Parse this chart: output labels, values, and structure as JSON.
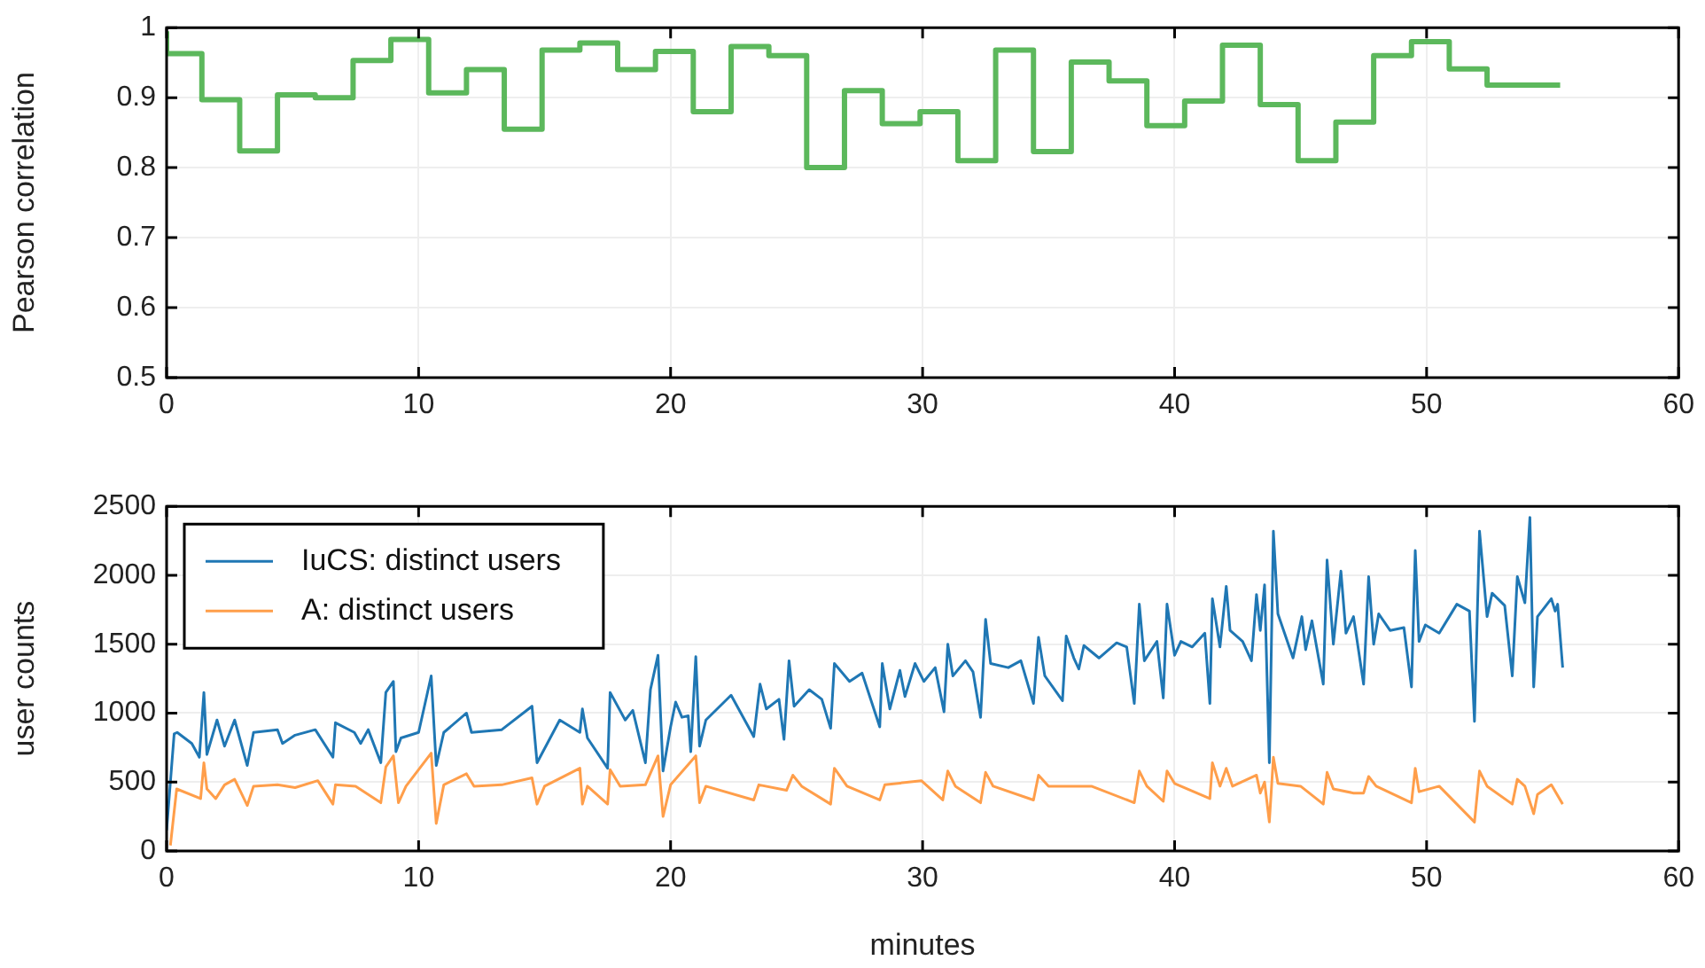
{
  "chart_data": [
    {
      "type": "step",
      "ylabel": "Pearson correlation",
      "xlim": [
        0,
        60
      ],
      "xticks": [
        0,
        10,
        20,
        30,
        40,
        50,
        60
      ],
      "ylim": [
        0.5,
        1
      ],
      "yticks": [
        0.5,
        0.6,
        0.7,
        0.8,
        0.9,
        1
      ],
      "grid": true,
      "legend": false,
      "series": [
        {
          "color": "#5cb85c",
          "x": [
            0,
            1.4,
            2.9,
            4.4,
            5.9,
            7.4,
            8.9,
            10.4,
            11.9,
            13.4,
            14.9,
            16.4,
            17.9,
            19.4,
            20.9,
            22.4,
            23.9,
            25.4,
            26.9,
            28.4,
            29.9,
            31.4,
            32.9,
            34.4,
            35.9,
            37.4,
            38.9,
            40.4,
            41.9,
            43.4,
            44.9,
            46.4,
            47.9,
            49.4,
            50.9,
            52.4,
            53.9,
            55.3
          ],
          "values": [
            0.995,
            0.963,
            0.897,
            0.824,
            0.904,
            0.9,
            0.953,
            0.983,
            0.907,
            0.94,
            0.855,
            0.968,
            0.978,
            0.94,
            0.966,
            0.88,
            0.973,
            0.96,
            0.8,
            0.91,
            0.863,
            0.88,
            0.81,
            0.968,
            0.823,
            0.951,
            0.924,
            0.86,
            0.895,
            0.975,
            0.89,
            0.81,
            0.865,
            0.96,
            0.98,
            0.941,
            0.918,
            0.918
          ]
        }
      ]
    },
    {
      "type": "line",
      "xlabel": "minutes",
      "ylabel": "user counts",
      "xlim": [
        0,
        60
      ],
      "xticks": [
        0,
        10,
        20,
        30,
        40,
        50,
        60
      ],
      "ylim": [
        0,
        2500
      ],
      "yticks": [
        0,
        500,
        1000,
        1500,
        2000,
        2500
      ],
      "grid": true,
      "legend": "top left",
      "series": [
        {
          "name": "IuCS: distinct users",
          "color": "#1f77b4",
          "x": [
            0,
            0.3,
            0.42,
            1.0,
            1.3,
            1.48,
            1.6,
            2.0,
            2.3,
            2.7,
            3.2,
            3.45,
            4.4,
            4.6,
            5.1,
            5.9,
            6.6,
            6.7,
            7.45,
            7.7,
            8.0,
            8.5,
            8.7,
            9.0,
            9.1,
            9.3,
            10.0,
            10.5,
            10.7,
            11.0,
            11.9,
            12.1,
            13.3,
            14.5,
            14.7,
            15.6,
            16.4,
            16.5,
            16.7,
            17.5,
            17.6,
            18.2,
            18.5,
            19.0,
            19.2,
            19.5,
            19.7,
            20.0,
            20.2,
            20.45,
            20.7,
            20.8,
            21.0,
            21.15,
            21.4,
            22.4,
            23.3,
            23.55,
            23.8,
            24.3,
            24.5,
            24.7,
            24.9,
            25.5,
            26.0,
            26.35,
            26.5,
            27.1,
            27.6,
            28.3,
            28.4,
            28.7,
            29.1,
            29.3,
            29.7,
            30.05,
            30.5,
            30.85,
            31.0,
            31.2,
            31.7,
            32.0,
            32.3,
            32.5,
            32.7,
            33.4,
            33.9,
            34.4,
            34.6,
            34.85,
            35.55,
            35.7,
            36.0,
            36.2,
            36.4,
            37.0,
            37.7,
            38.1,
            38.4,
            38.6,
            38.8,
            39.3,
            39.55,
            39.7,
            40.0,
            40.25,
            40.7,
            41.2,
            41.4,
            41.5,
            41.8,
            42.05,
            42.2,
            42.7,
            43.05,
            43.25,
            43.4,
            43.57,
            43.76,
            43.92,
            44.1,
            44.7,
            45.05,
            45.2,
            45.45,
            45.9,
            46.05,
            46.3,
            46.6,
            46.8,
            47.1,
            47.5,
            47.7,
            47.9,
            48.1,
            48.55,
            49.1,
            49.4,
            49.55,
            49.7,
            49.95,
            50.5,
            50.9,
            51.2,
            51.7,
            51.9,
            52.1,
            52.4,
            52.6,
            53.1,
            53.4,
            53.6,
            53.9,
            54.1,
            54.25,
            54.4,
            54.95,
            55.1,
            55.2,
            55.4
          ],
          "values": [
            150,
            850,
            860,
            780,
            680,
            1150,
            700,
            950,
            760,
            950,
            620,
            860,
            880,
            780,
            840,
            880,
            680,
            930,
            860,
            780,
            880,
            640,
            1150,
            1230,
            720,
            820,
            860,
            1270,
            620,
            860,
            1000,
            860,
            880,
            1050,
            640,
            950,
            860,
            1030,
            820,
            600,
            1150,
            950,
            1020,
            640,
            1170,
            1420,
            580,
            900,
            1080,
            970,
            980,
            720,
            1410,
            760,
            950,
            1130,
            830,
            1210,
            1030,
            1100,
            810,
            1380,
            1050,
            1170,
            1100,
            890,
            1360,
            1230,
            1290,
            900,
            1360,
            1030,
            1310,
            1120,
            1360,
            1230,
            1330,
            1010,
            1500,
            1270,
            1380,
            1300,
            970,
            1680,
            1360,
            1330,
            1380,
            1070,
            1550,
            1270,
            1090,
            1560,
            1400,
            1320,
            1490,
            1400,
            1510,
            1480,
            1070,
            1790,
            1380,
            1520,
            1110,
            1790,
            1420,
            1520,
            1480,
            1580,
            1070,
            1830,
            1480,
            1920,
            1600,
            1520,
            1380,
            1860,
            1600,
            1930,
            640,
            2320,
            1720,
            1400,
            1700,
            1460,
            1670,
            1210,
            2110,
            1500,
            2030,
            1580,
            1700,
            1210,
            1990,
            1500,
            1720,
            1600,
            1620,
            1190,
            2180,
            1520,
            1640,
            1580,
            1700,
            1790,
            1740,
            940,
            2320,
            1700,
            1870,
            1780,
            1270,
            1990,
            1800,
            2420,
            1190,
            1700,
            1830,
            1740,
            1790,
            1330
          ]
        },
        {
          "name": "A: distinct users",
          "color": "#ff9e4a",
          "x": [
            0.15,
            0.4,
            1.35,
            1.48,
            1.6,
            1.95,
            2.3,
            2.7,
            3.2,
            3.45,
            4.4,
            5.1,
            6.0,
            6.6,
            6.7,
            7.5,
            8.5,
            8.7,
            9.0,
            9.2,
            9.5,
            10.5,
            10.7,
            11.0,
            11.9,
            12.2,
            13.3,
            14.5,
            14.7,
            15.0,
            16.4,
            16.5,
            16.7,
            17.5,
            17.6,
            18.0,
            19.0,
            19.5,
            19.7,
            20.0,
            21.0,
            21.15,
            21.4,
            23.3,
            23.5,
            24.6,
            24.85,
            25.2,
            26.35,
            26.5,
            27.0,
            28.3,
            28.5,
            29.95,
            30.8,
            31.0,
            31.3,
            32.3,
            32.5,
            32.8,
            34.4,
            34.6,
            35.0,
            36.7,
            38.4,
            38.6,
            38.9,
            39.55,
            39.7,
            40.0,
            41.4,
            41.5,
            41.8,
            42.05,
            42.3,
            43.25,
            43.4,
            43.57,
            43.76,
            43.92,
            44.1,
            45.0,
            45.9,
            46.05,
            46.3,
            47.1,
            47.5,
            47.7,
            48.0,
            49.4,
            49.55,
            49.7,
            50.5,
            51.9,
            52.1,
            52.4,
            53.4,
            53.6,
            53.9,
            54.25,
            54.4,
            54.95,
            55.4
          ],
          "values": [
            40,
            450,
            380,
            640,
            450,
            380,
            480,
            520,
            330,
            470,
            480,
            460,
            510,
            340,
            480,
            470,
            350,
            610,
            690,
            350,
            470,
            710,
            200,
            480,
            560,
            470,
            480,
            530,
            340,
            470,
            600,
            340,
            470,
            340,
            590,
            470,
            480,
            690,
            250,
            480,
            690,
            350,
            470,
            370,
            480,
            440,
            550,
            470,
            340,
            600,
            470,
            370,
            480,
            510,
            370,
            580,
            470,
            350,
            570,
            470,
            370,
            550,
            470,
            470,
            350,
            580,
            470,
            360,
            580,
            490,
            380,
            640,
            470,
            600,
            470,
            550,
            420,
            500,
            210,
            680,
            490,
            470,
            340,
            570,
            450,
            420,
            420,
            540,
            470,
            350,
            600,
            430,
            470,
            210,
            580,
            470,
            340,
            520,
            470,
            270,
            410,
            480,
            340
          ]
        }
      ]
    }
  ]
}
